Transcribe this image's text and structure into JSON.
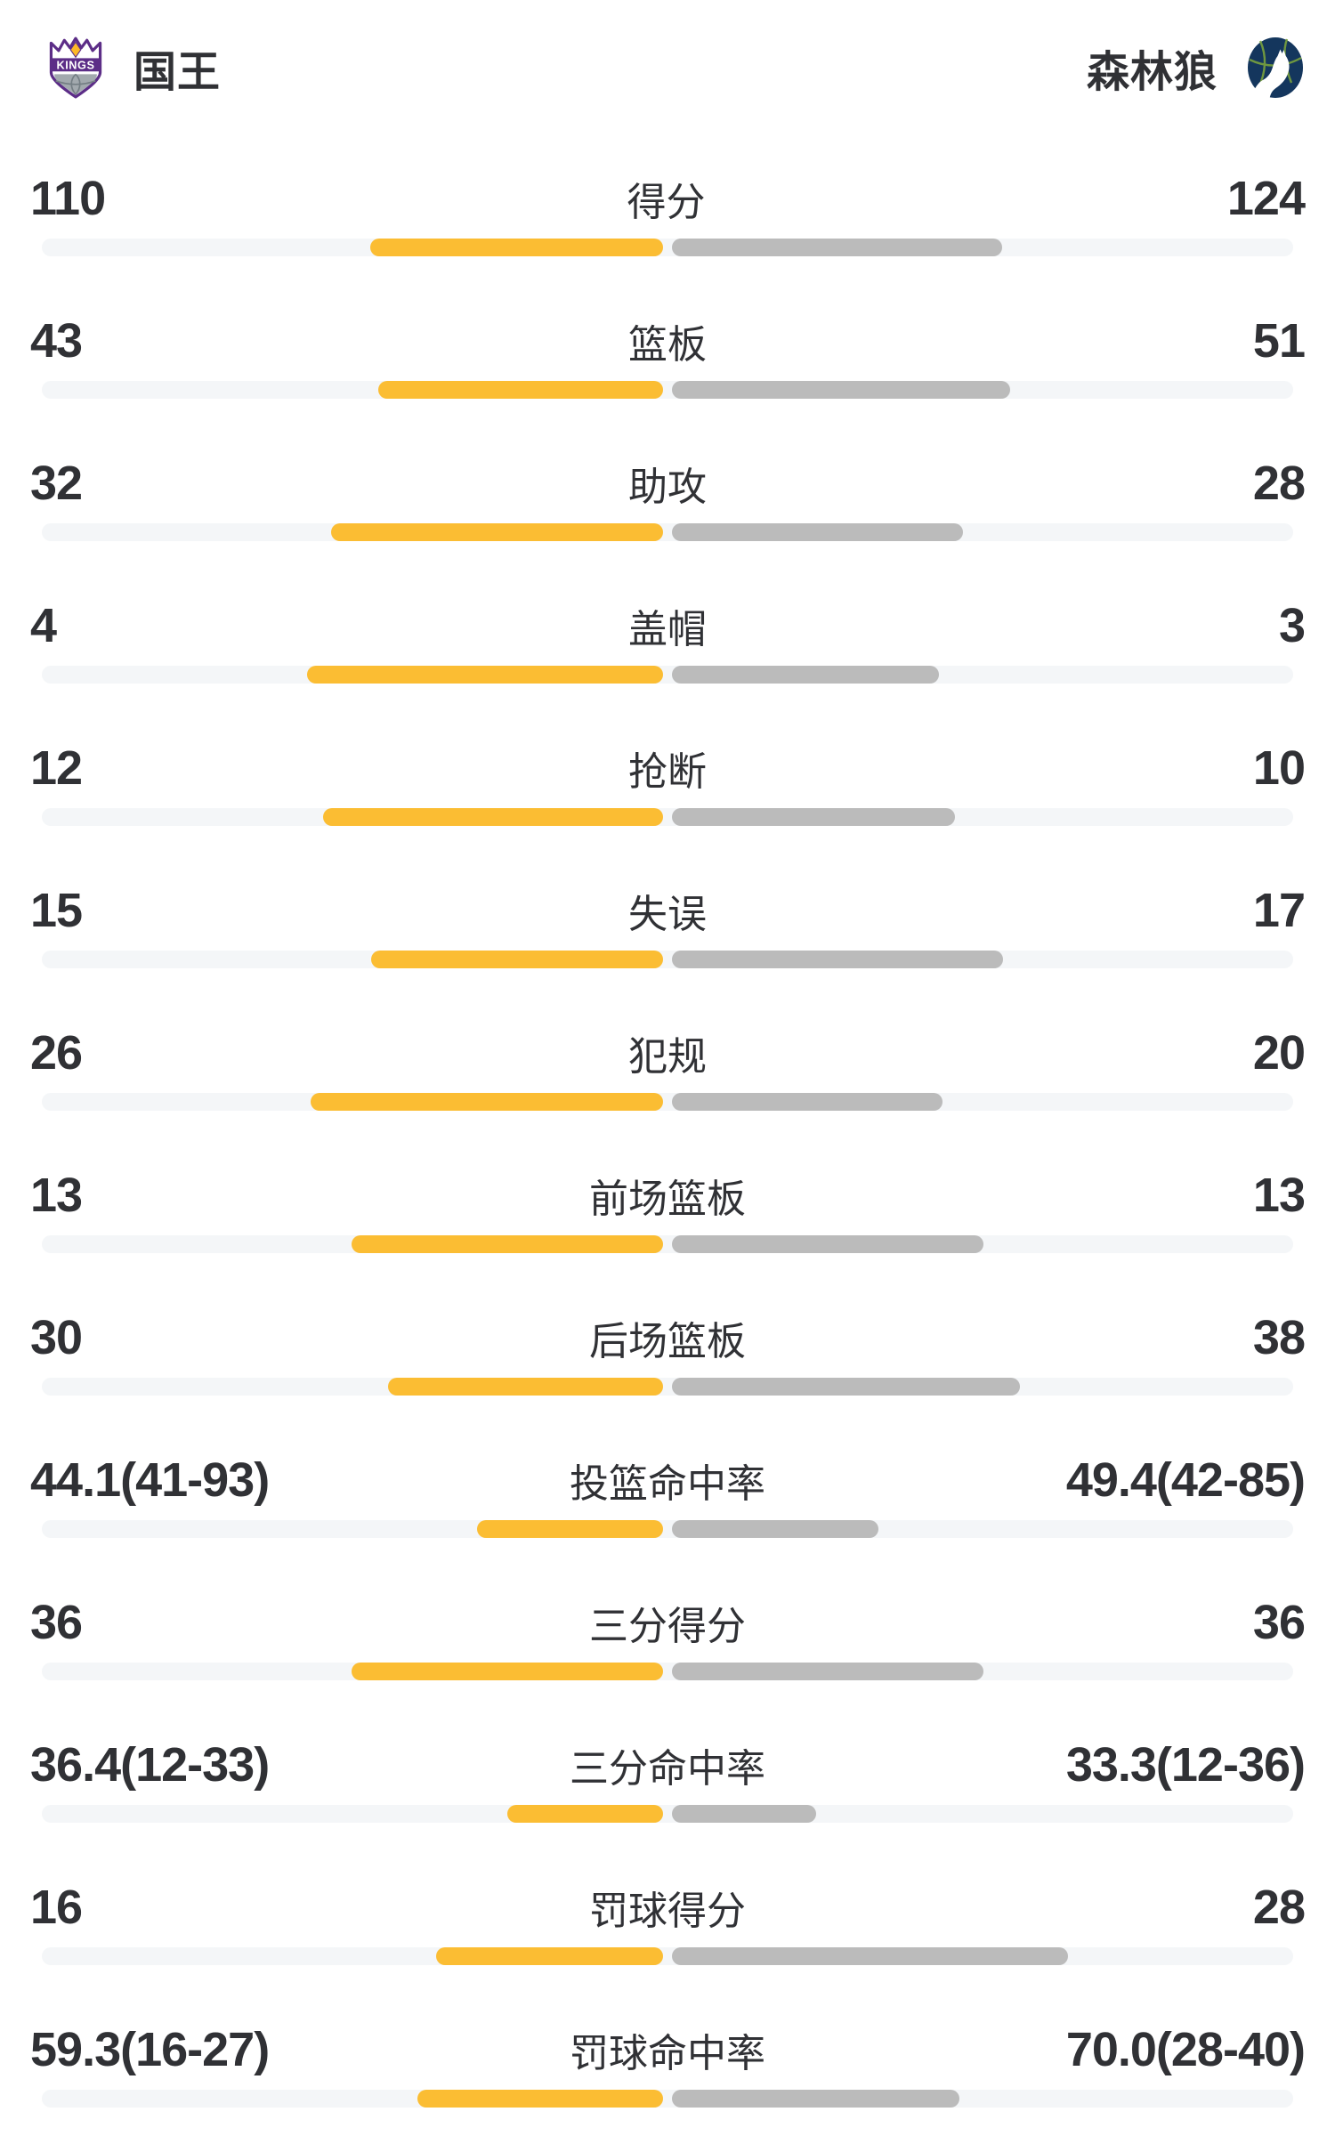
{
  "header": {
    "left_team": {
      "name": "国王",
      "logo": "kings-logo"
    },
    "right_team": {
      "name": "森林狼",
      "logo": "timberwolves-logo"
    }
  },
  "colors": {
    "left_bar": "#FBBD33",
    "right_bar": "#BBBBBB",
    "track": "#F4F6F8",
    "text": "#303135",
    "kings_purple": "#5C2D87",
    "kings_gold": "#FDB927",
    "wolves_navy": "#14365D",
    "wolves_green": "#79A23D"
  },
  "chart_data": {
    "type": "bar",
    "layout": "horizontal-dual-sided",
    "left_series": "国王",
    "right_series": "森林狼",
    "rows": [
      {
        "label": "得分",
        "left": "110",
        "right": "124",
        "left_num": 110,
        "right_num": 124,
        "kind": "count"
      },
      {
        "label": "篮板",
        "left": "43",
        "right": "51",
        "left_num": 43,
        "right_num": 51,
        "kind": "count"
      },
      {
        "label": "助攻",
        "left": "32",
        "right": "28",
        "left_num": 32,
        "right_num": 28,
        "kind": "count"
      },
      {
        "label": "盖帽",
        "left": "4",
        "right": "3",
        "left_num": 4,
        "right_num": 3,
        "kind": "count"
      },
      {
        "label": "抢断",
        "left": "12",
        "right": "10",
        "left_num": 12,
        "right_num": 10,
        "kind": "count"
      },
      {
        "label": "失误",
        "left": "15",
        "right": "17",
        "left_num": 15,
        "right_num": 17,
        "kind": "count"
      },
      {
        "label": "犯规",
        "left": "26",
        "right": "20",
        "left_num": 26,
        "right_num": 20,
        "kind": "count"
      },
      {
        "label": "前场篮板",
        "left": "13",
        "right": "13",
        "left_num": 13,
        "right_num": 13,
        "kind": "count"
      },
      {
        "label": "后场篮板",
        "left": "30",
        "right": "38",
        "left_num": 30,
        "right_num": 38,
        "kind": "count"
      },
      {
        "label": "投篮命中率",
        "left": "44.1(41-93)",
        "right": "49.4(42-85)",
        "left_num": 44.1,
        "right_num": 49.4,
        "kind": "pct"
      },
      {
        "label": "三分得分",
        "left": "36",
        "right": "36",
        "left_num": 36,
        "right_num": 36,
        "kind": "count"
      },
      {
        "label": "三分命中率",
        "left": "36.4(12-33)",
        "right": "33.3(12-36)",
        "left_num": 36.4,
        "right_num": 33.3,
        "kind": "pct"
      },
      {
        "label": "罚球得分",
        "left": "16",
        "right": "28",
        "left_num": 16,
        "right_num": 28,
        "kind": "count"
      },
      {
        "label": "罚球命中率",
        "left": "59.3(16-27)",
        "right": "70.0(28-40)",
        "left_num": 59.3,
        "right_num": 70.0,
        "kind": "pct"
      }
    ]
  }
}
